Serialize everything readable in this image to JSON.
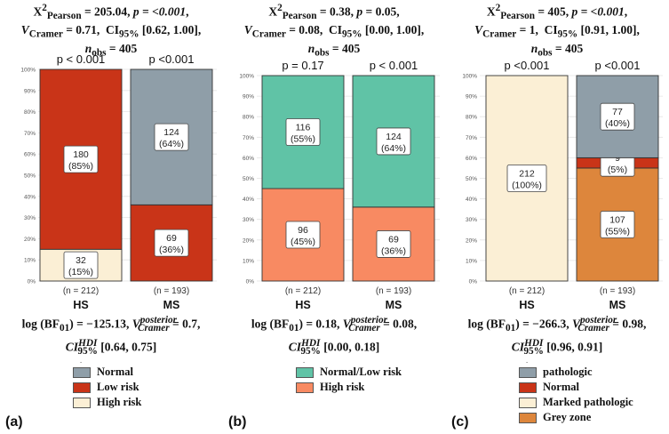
{
  "chart_data": [
    {
      "type": "bar",
      "stacked": true,
      "panel_label": "(a)",
      "stats_lines": [
        "X²Pearson = 205.04, p = <0.001,",
        "VCramer = 0.71,  CI95% [0.62, 1.00],",
        "nobs = 405"
      ],
      "categories": [
        "HS",
        "MS"
      ],
      "n_labels": [
        "(n = 212)",
        "(n = 193)"
      ],
      "p_labels": [
        "p < 0.001",
        "p <0.001"
      ],
      "y_ticks": [
        "0%",
        "10%",
        "20%",
        "30%",
        "40%",
        "50%",
        "60%",
        "70%",
        "80%",
        "90%",
        "100%"
      ],
      "ylim": [
        0,
        100
      ],
      "series": [
        {
          "name": "High risk",
          "color": "#fbefd5",
          "percent": [
            15,
            0
          ],
          "labels": [
            [
              "32",
              "(15%)"
            ],
            null
          ]
        },
        {
          "name": "Low risk",
          "color": "#c93418",
          "percent": [
            85,
            36
          ],
          "labels": [
            [
              "180",
              "(85%)"
            ],
            [
              "69",
              "(36%)"
            ]
          ]
        },
        {
          "name": "Normal",
          "color": "#8f9ea8",
          "percent": [
            0,
            64
          ],
          "labels": [
            null,
            [
              "124",
              "(64%)"
            ]
          ]
        }
      ],
      "legend_title": "-",
      "legend_order": [
        "Normal",
        "Low risk",
        "High risk"
      ],
      "bf_lines": [
        "log (BF01) = −125.13, V posterior Cramer = 0.7,",
        "CI HDI 95% [0.64, 0.75]"
      ]
    },
    {
      "type": "bar",
      "stacked": true,
      "panel_label": "(b)",
      "stats_lines": [
        "X²Pearson = 0.38, p = 0.05,",
        "VCramer = 0.08,  CI95% [0.00, 1.00],",
        "nobs = 405"
      ],
      "categories": [
        "HS",
        "MS"
      ],
      "n_labels": [
        "(n = 212)",
        "(n = 193)"
      ],
      "p_labels": [
        "p = 0.17",
        "p < 0.001"
      ],
      "y_ticks": [
        "0%",
        "10%",
        "20%",
        "30%",
        "40%",
        "50%",
        "60%",
        "70%",
        "80%",
        "90%",
        "100%"
      ],
      "ylim": [
        0,
        100
      ],
      "series": [
        {
          "name": "High risk",
          "color": "#f88a62",
          "percent": [
            45,
            36
          ],
          "labels": [
            [
              "96",
              "(45%)"
            ],
            [
              "69",
              "(36%)"
            ]
          ]
        },
        {
          "name": "Normal/Low risk",
          "color": "#60c3a6",
          "percent": [
            55,
            64
          ],
          "labels": [
            [
              "116",
              "(55%)"
            ],
            [
              "124",
              "(64%)"
            ]
          ]
        }
      ],
      "legend_title": "-",
      "legend_order": [
        "Normal/Low risk",
        "High risk"
      ],
      "bf_lines": [
        "log (BF01) = 0.18, V posterior Cramer = 0.08,",
        "CI HDI 95% [0.00, 0.18]"
      ]
    },
    {
      "type": "bar",
      "stacked": true,
      "panel_label": "(c)",
      "stats_lines": [
        "X²Pearson = 405, p = <0.001,",
        "VCramer = 1,  CI95% [0.91, 1.00],",
        "nobs = 405"
      ],
      "categories": [
        "HS",
        "MS"
      ],
      "n_labels": [
        "(n = 212)",
        "(n = 193)"
      ],
      "p_labels": [
        "p <0.001",
        "p <0.001"
      ],
      "y_ticks": [
        "0%",
        "10%",
        "20%",
        "30%",
        "40%",
        "50%",
        "60%",
        "70%",
        "80%",
        "90%",
        "100%"
      ],
      "ylim": [
        0,
        100
      ],
      "series": [
        {
          "name": "Grey zone",
          "color": "#dd863c",
          "percent": [
            0,
            55
          ],
          "labels": [
            null,
            [
              "107",
              "(55%)"
            ]
          ]
        },
        {
          "name": "Marked pathologic",
          "color": "#fbefd5",
          "percent": [
            100,
            0
          ],
          "labels": [
            [
              "212",
              "(100%)"
            ],
            null
          ]
        },
        {
          "name": "Normal",
          "color": "#c93418",
          "percent": [
            0,
            5
          ],
          "labels": [
            null,
            [
              "9",
              "(5%)"
            ]
          ]
        },
        {
          "name": "pathologic",
          "color": "#8f9ea8",
          "percent": [
            0,
            40
          ],
          "labels": [
            null,
            [
              "77",
              "(40%)"
            ]
          ]
        }
      ],
      "legend_title": "-",
      "legend_order": [
        "pathologic",
        "Normal",
        "Marked pathologic",
        "Grey zone"
      ],
      "bf_lines": [
        "log (BF01) = −266.3, V posterior Cramer = 0.98,",
        "CI HDI 95% [0.96, 0.91]"
      ]
    }
  ]
}
